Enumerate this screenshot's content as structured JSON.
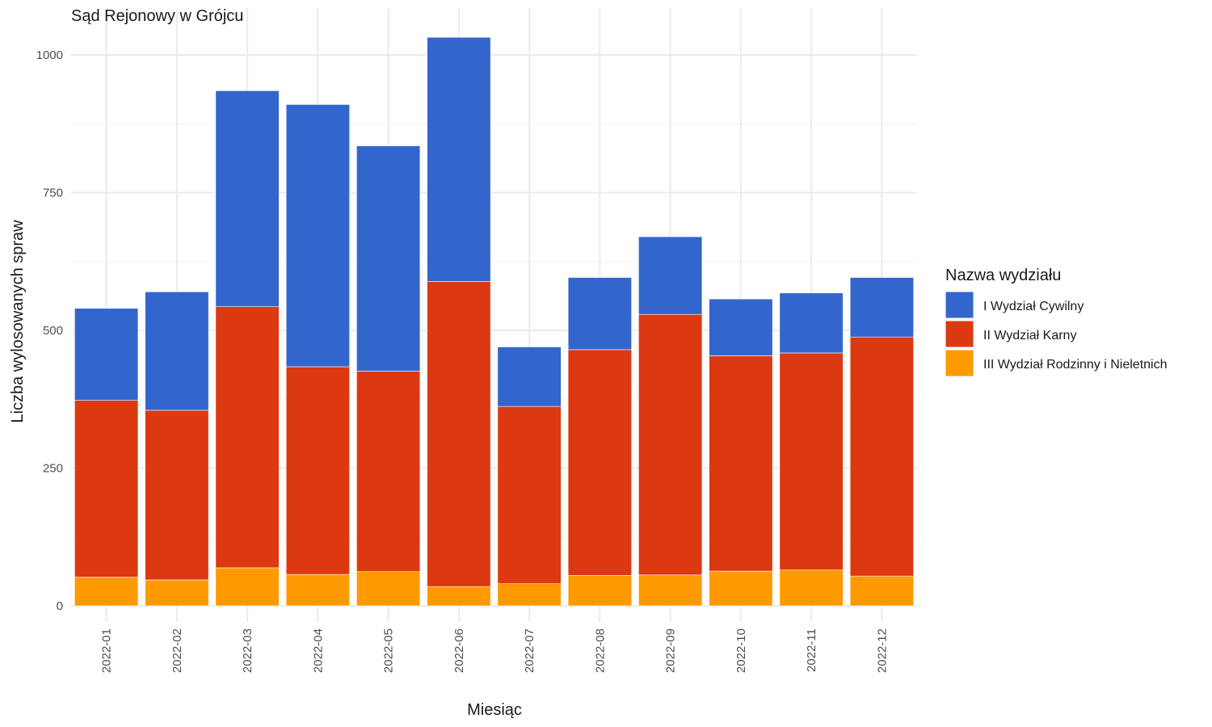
{
  "chart_data": {
    "type": "bar",
    "stacked": true,
    "title": "Sąd Rejonowy w Grójcu",
    "xlabel": "Miesiąc",
    "ylabel": "Liczba wylosowanych spraw",
    "ylim": [
      0,
      1050
    ],
    "yticks": [
      0,
      250,
      500,
      750,
      1000
    ],
    "grid": true,
    "legend_title": "Nazwa wydziału",
    "legend_position": "right",
    "categories": [
      "2022-01",
      "2022-02",
      "2022-03",
      "2022-04",
      "2022-05",
      "2022-06",
      "2022-07",
      "2022-08",
      "2022-09",
      "2022-10",
      "2022-11",
      "2022-12"
    ],
    "series": [
      {
        "name": "III Wydział Rodzinny i Nieletnich",
        "color": "#FF9900",
        "values": [
          52,
          47,
          69,
          57,
          62,
          35,
          40,
          55,
          56,
          63,
          65,
          54
        ]
      },
      {
        "name": "II Wydział Karny",
        "color": "#DC3912",
        "values": [
          321,
          308,
          474,
          377,
          364,
          554,
          322,
          410,
          473,
          391,
          394,
          434
        ]
      },
      {
        "name": "I Wydział Cywilny",
        "color": "#3366CC",
        "values": [
          167,
          215,
          392,
          476,
          409,
          443,
          108,
          131,
          141,
          103,
          109,
          108
        ]
      }
    ]
  }
}
